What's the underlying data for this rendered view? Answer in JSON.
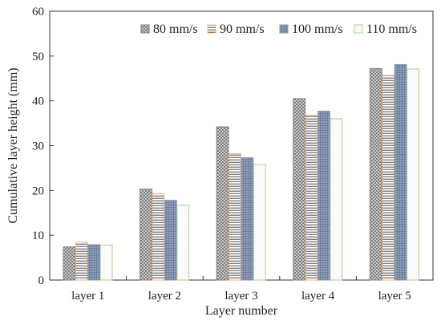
{
  "chart_data": {
    "type": "bar",
    "title": "",
    "xlabel": "Layer number",
    "ylabel": "Cumulative layer height (mm)",
    "categories": [
      "layer 1",
      "layer 2",
      "layer 3",
      "layer 4",
      "layer 5"
    ],
    "ylim": [
      0,
      60
    ],
    "yticks": [
      0,
      10,
      20,
      30,
      40,
      50,
      60
    ],
    "grid": false,
    "legend_position": "top-right",
    "series": [
      {
        "name": "80 mm/s",
        "pattern": "crosshatch",
        "color": "#7f7f7f",
        "values": [
          7.4,
          20.3,
          34.2,
          40.5,
          47.2
        ]
      },
      {
        "name": "90 mm/s",
        "pattern": "horizontal-lines",
        "color": "#f4b183",
        "values": [
          8.5,
          19.3,
          28.2,
          36.8,
          45.7
        ]
      },
      {
        "name": "100 mm/s",
        "pattern": "dense-grid",
        "color": "#8497b0",
        "values": [
          7.9,
          17.8,
          27.3,
          37.7,
          48.1
        ]
      },
      {
        "name": "110 mm/s",
        "pattern": "light-dots",
        "color": "#a9d18e",
        "values": [
          7.8,
          16.7,
          25.8,
          36.0,
          47.1
        ]
      }
    ]
  }
}
